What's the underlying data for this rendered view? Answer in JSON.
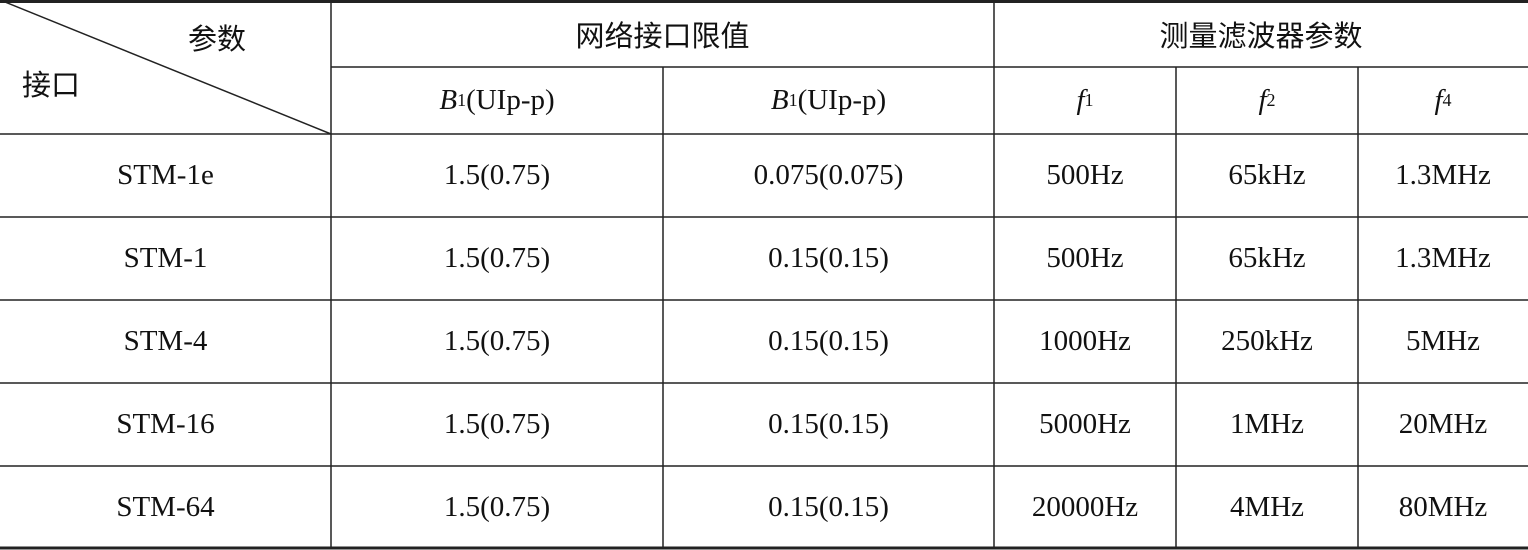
{
  "table": {
    "corner": {
      "column_label": "参数",
      "row_label": "接口"
    },
    "groups": [
      "网络接口限值",
      "测量滤波器参数"
    ],
    "subheaders": [
      {
        "symbol": "B",
        "subscript": "1",
        "suffix": "(UIp-p)"
      },
      {
        "symbol": "B",
        "subscript": "1",
        "suffix": "(UIp-p)"
      },
      {
        "symbol": "f",
        "subscript": "1"
      },
      {
        "symbol": "f",
        "subscript": "2"
      },
      {
        "symbol": "f",
        "subscript": "4"
      }
    ],
    "rows": [
      [
        "STM-1e",
        "1.5(0.75)",
        "0.075(0.075)",
        "500Hz",
        "65kHz",
        "1.3MHz"
      ],
      [
        "STM-1",
        "1.5(0.75)",
        "0.15(0.15)",
        "500Hz",
        "65kHz",
        "1.3MHz"
      ],
      [
        "STM-4",
        "1.5(0.75)",
        "0.15(0.15)",
        "1000Hz",
        "250kHz",
        "5MHz"
      ],
      [
        "STM-16",
        "1.5(0.75)",
        "0.15(0.15)",
        "5000Hz",
        "1MHz",
        "20MHz"
      ],
      [
        "STM-64",
        "1.5(0.75)",
        "0.15(0.15)",
        "20000Hz",
        "4MHz",
        "80MHz"
      ]
    ]
  }
}
